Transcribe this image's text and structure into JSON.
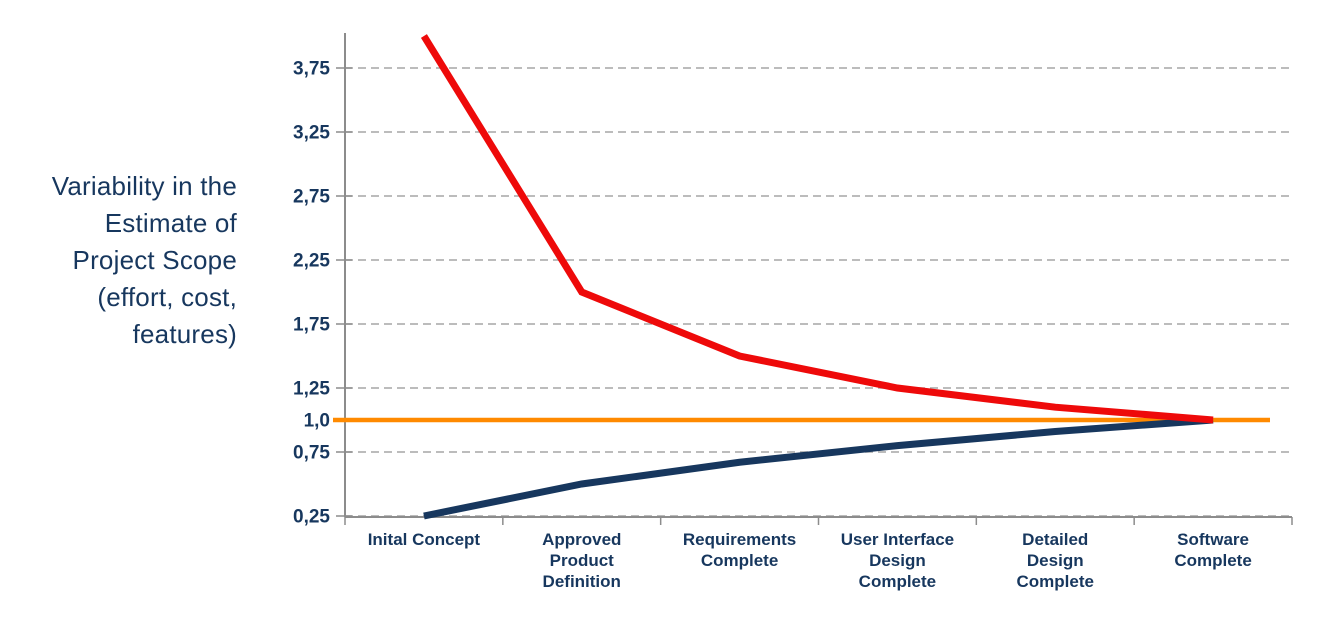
{
  "page": {
    "background_color": "#ffffff"
  },
  "y_axis_title": {
    "full_text": "Variability in the Estimate of Project Scope (effort, cost, features)",
    "lines": [
      "Variability in the",
      "Estimate of",
      "Project Scope",
      "(effort, cost,",
      "features)"
    ]
  },
  "chart_data": {
    "type": "line",
    "title": "",
    "xlabel": "",
    "ylabel": "Variability in the Estimate of Project Scope (effort, cost, features)",
    "categories": [
      "Inital Concept",
      "Approved Product Definition",
      "Requirements Complete",
      "User Interface Design Complete",
      "Detailed Design Complete",
      "Software Complete"
    ],
    "category_label_lines": [
      [
        "Inital Concept"
      ],
      [
        "Approved",
        "Product",
        "Definition"
      ],
      [
        "Requirements",
        "Complete"
      ],
      [
        "User Interface",
        "Design",
        "Complete"
      ],
      [
        "Detailed",
        "Design",
        "Complete"
      ],
      [
        "Software",
        "Complete"
      ]
    ],
    "series": [
      {
        "name": "baseline-final-estimate",
        "color": "#FF8A00",
        "values": [
          1.0,
          1.0,
          1.0,
          1.0,
          1.0,
          1.0
        ],
        "width": 4.5,
        "extend_full_width": true
      },
      {
        "name": "lower-estimate-bound",
        "color": "#17375E",
        "values": [
          0.25,
          0.5,
          0.67,
          0.8,
          0.91,
          1.0
        ],
        "width": 7,
        "extend_full_width": false
      },
      {
        "name": "upper-estimate-bound",
        "color": "#EE0A0A",
        "values": [
          4.0,
          2.0,
          1.5,
          1.25,
          1.1,
          1.0
        ],
        "width": 7,
        "extend_full_width": false
      }
    ],
    "y_ticks": [
      {
        "label": "3,75",
        "value": 3.75
      },
      {
        "label": "3,25",
        "value": 3.25
      },
      {
        "label": "2,75",
        "value": 2.75
      },
      {
        "label": "2,25",
        "value": 2.25
      },
      {
        "label": "1,75",
        "value": 1.75
      },
      {
        "label": "1,25",
        "value": 1.25
      },
      {
        "label": "1,0",
        "value": 1.0
      },
      {
        "label": "0,75",
        "value": 0.75
      },
      {
        "label": "0,25",
        "value": 0.25
      }
    ],
    "gridline_values": [
      3.75,
      3.25,
      2.75,
      2.25,
      1.75,
      1.25,
      0.75,
      0.25
    ],
    "ylim": [
      0.25,
      4.0
    ],
    "decimal_separator": ",",
    "grid": "horizontal-dashed",
    "legend_position": "none",
    "colors": {
      "axis": "#8C8C8C",
      "gridline": "#A6A6A6",
      "label_text": "#17375E"
    }
  }
}
